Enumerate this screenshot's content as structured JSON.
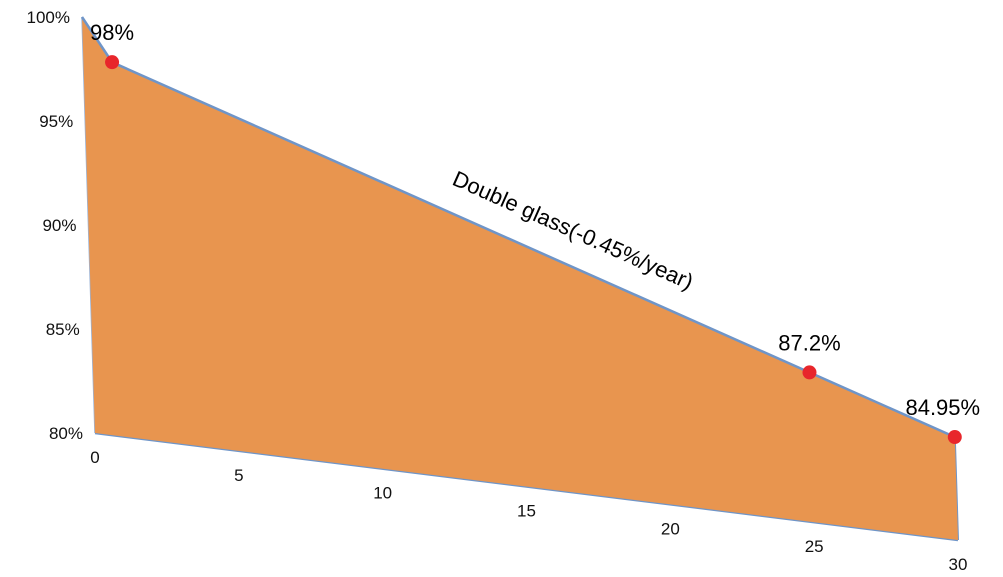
{
  "chart_data": {
    "type": "area",
    "title": "",
    "xlabel": "",
    "ylabel": "",
    "x": [
      0,
      1,
      25,
      30
    ],
    "y": [
      100,
      98,
      87.2,
      84.95
    ],
    "ylim": [
      80,
      100
    ],
    "xlim": [
      0,
      30
    ],
    "yticks": [
      "100%",
      "95%",
      "90%",
      "85%",
      "80%"
    ],
    "xticks": [
      "0",
      "5",
      "10",
      "15",
      "20",
      "25",
      "30"
    ],
    "series": [
      {
        "name": "Double glass(-0.45%/year)",
        "fill_color": "#e8954f",
        "line_color": "#6f95c8"
      }
    ],
    "markers": [
      {
        "x": 1,
        "y": 98,
        "label": "98%"
      },
      {
        "x": 25,
        "y": 87.2,
        "label": "87.2%"
      },
      {
        "x": 30,
        "y": 84.95,
        "label": "84.95%"
      }
    ],
    "marker_color": "#e8262b",
    "grid": false,
    "legend": "none"
  }
}
